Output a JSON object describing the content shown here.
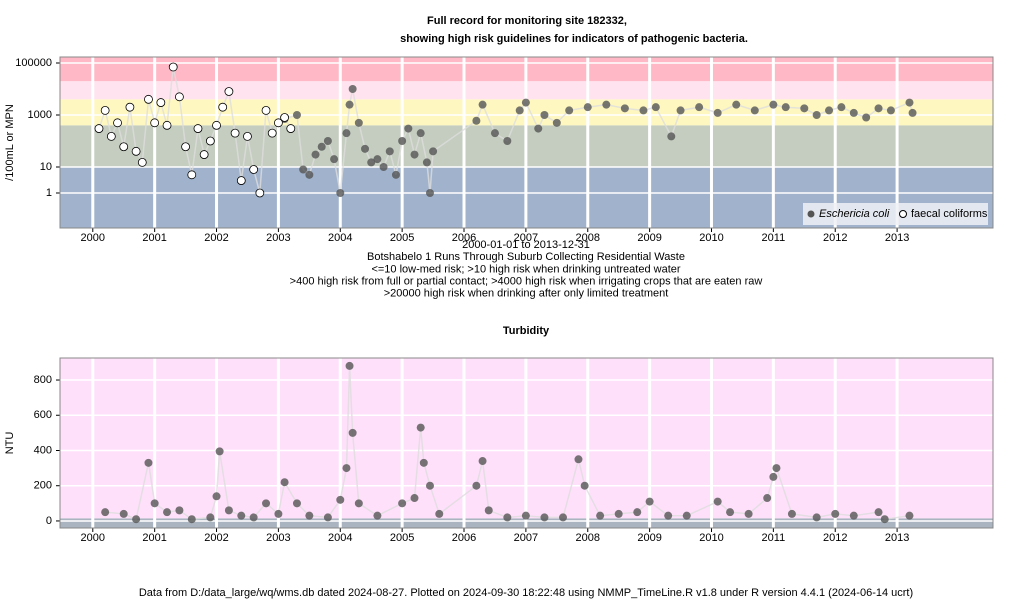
{
  "chart_data": [
    {
      "type": "scatter",
      "title": "Full record for monitoring site 182332,",
      "subtitle": "showing high risk guidelines for indicators of pathogenic bacteria.",
      "ylabel": "/100mL or MPN",
      "log_y": true,
      "legend": "lower right",
      "grid": true,
      "notes": [
        "2000-01-01 to 2013-12-31",
        "Botshabelo 1 Runs Through Suburb Collecting Residential Waste",
        "<=10 low-med risk; >10 high risk when drinking untreated water",
        ">400 high risk from full or partial contact; >4000 high risk when irrigating crops that are eaten raw",
        ">20000 high risk when drinking after only limited treatment"
      ],
      "xlim": [
        1999.47,
        2014.55
      ],
      "xticks": [
        2000,
        2001,
        2002,
        2003,
        2004,
        2005,
        2006,
        2007,
        2008,
        2009,
        2010,
        2011,
        2012,
        2013
      ],
      "ylim": [
        0.045,
        170000
      ],
      "yticks": [
        1,
        10,
        1000,
        100000
      ],
      "thresholds": [
        10,
        400,
        4000,
        20000
      ],
      "band_colors": [
        "#a1b3cc",
        "#c4cdbf",
        "#fff7c0",
        "#ffe3ee",
        "#ffb8c6"
      ],
      "series": [
        {
          "name": "Eschericia coli",
          "color": "#555555",
          "marker": "filled",
          "x": [
            2003.1,
            2003.3,
            2003.4,
            2003.5,
            2003.6,
            2003.7,
            2003.8,
            2003.9,
            2004.0,
            2004.1,
            2004.15,
            2004.2,
            2004.3,
            2004.4,
            2004.5,
            2004.6,
            2004.7,
            2004.8,
            2004.9,
            2005.0,
            2005.1,
            2005.2,
            2005.3,
            2005.4,
            2005.45,
            2005.5,
            2006.2,
            2006.3,
            2006.5,
            2006.7,
            2006.9,
            2007.0,
            2007.2,
            2007.3,
            2007.5,
            2007.7,
            2008.0,
            2008.3,
            2008.6,
            2008.9,
            2009.1,
            2009.35,
            2009.5,
            2009.8,
            2010.1,
            2010.4,
            2010.7,
            2011.0,
            2011.2,
            2011.5,
            2011.7,
            2011.9,
            2012.1,
            2012.3,
            2012.5,
            2012.7,
            2012.9,
            2013.2,
            2013.25
          ],
          "values": [
            700,
            1000,
            8,
            5,
            30,
            60,
            100,
            20,
            1,
            200,
            2500,
            10000,
            500,
            50,
            15,
            20,
            10,
            40,
            5,
            100,
            300,
            30,
            200,
            15,
            1,
            40,
            600,
            2500,
            200,
            100,
            1500,
            3000,
            300,
            1000,
            500,
            1500,
            2000,
            2500,
            1800,
            1500,
            2000,
            150,
            1500,
            2000,
            1200,
            2500,
            1500,
            2500,
            2000,
            1800,
            1000,
            1500,
            2000,
            1200,
            800,
            1800,
            1500,
            3000,
            1200
          ]
        },
        {
          "name": "faecal coliforms",
          "color": "#000000",
          "marker": "open",
          "x": [
            2000.1,
            2000.2,
            2000.3,
            2000.4,
            2000.5,
            2000.6,
            2000.7,
            2000.8,
            2000.9,
            2001.0,
            2001.1,
            2001.2,
            2001.3,
            2001.4,
            2001.5,
            2001.6,
            2001.7,
            2001.8,
            2001.9,
            2002.0,
            2002.1,
            2002.2,
            2002.3,
            2002.4,
            2002.5,
            2002.6,
            2002.7,
            2002.8,
            2002.9,
            2003.0,
            2003.1,
            2003.2
          ],
          "values": [
            300,
            1500,
            150,
            500,
            60,
            2000,
            40,
            15,
            4000,
            500,
            3000,
            400,
            70000,
            5000,
            60,
            5,
            300,
            30,
            100,
            400,
            2000,
            8000,
            200,
            3,
            150,
            8,
            1,
            1500,
            200,
            500,
            800,
            300
          ]
        }
      ]
    },
    {
      "type": "scatter",
      "title": "Turbidity",
      "ylabel": "NTU",
      "log_y": false,
      "grid": true,
      "xlim": [
        1999.47,
        2014.55
      ],
      "xticks": [
        2000,
        2001,
        2002,
        2003,
        2004,
        2005,
        2006,
        2007,
        2008,
        2009,
        2010,
        2011,
        2012,
        2013
      ],
      "ylim": [
        -40,
        925
      ],
      "yticks": [
        0,
        200,
        400,
        600,
        800
      ],
      "thresholds": [
        15
      ],
      "band_colors": [
        "#a9b4c0",
        "#ffe0fb"
      ],
      "series": [
        {
          "name": "Turbidity",
          "color": "#555555",
          "marker": "filled",
          "x": [
            2000.2,
            2000.5,
            2000.7,
            2000.9,
            2001.0,
            2001.2,
            2001.4,
            2001.6,
            2001.9,
            2002.0,
            2002.05,
            2002.2,
            2002.4,
            2002.6,
            2002.8,
            2003.0,
            2003.1,
            2003.3,
            2003.5,
            2003.8,
            2004.0,
            2004.1,
            2004.15,
            2004.2,
            2004.3,
            2004.6,
            2005.0,
            2005.2,
            2005.3,
            2005.35,
            2005.45,
            2005.6,
            2006.2,
            2006.3,
            2006.4,
            2006.7,
            2007.0,
            2007.3,
            2007.6,
            2007.85,
            2007.95,
            2008.2,
            2008.5,
            2008.8,
            2009.0,
            2009.3,
            2009.6,
            2010.1,
            2010.3,
            2010.6,
            2010.9,
            2011.0,
            2011.05,
            2011.3,
            2011.7,
            2012.0,
            2012.3,
            2012.7,
            2012.8,
            2013.2
          ],
          "values": [
            50,
            40,
            10,
            330,
            100,
            50,
            60,
            10,
            20,
            140,
            395,
            60,
            30,
            20,
            100,
            40,
            220,
            100,
            30,
            20,
            120,
            300,
            880,
            500,
            100,
            30,
            100,
            130,
            530,
            330,
            200,
            40,
            200,
            340,
            60,
            20,
            30,
            20,
            20,
            350,
            200,
            30,
            40,
            50,
            110,
            30,
            30,
            110,
            50,
            40,
            130,
            250,
            300,
            40,
            20,
            40,
            30,
            50,
            10,
            30
          ]
        }
      ]
    }
  ],
  "footer": "Data from D:/data_large/wq/wms.db dated 2024-08-27. Plotted on 2024-09-30 18:22:48 using NMMP_TimeLine.R v1.8 under R version 4.4.1 (2024-06-14 ucrt)"
}
